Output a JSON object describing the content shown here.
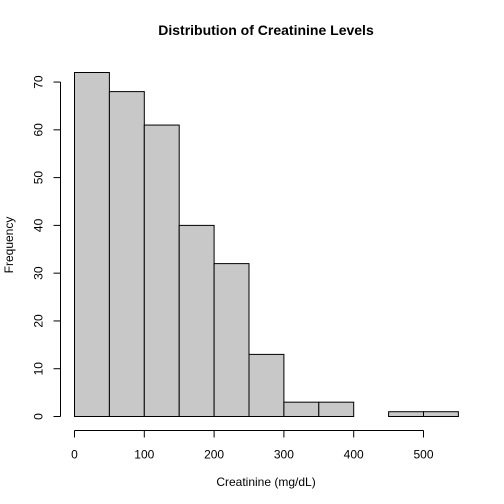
{
  "chart_data": {
    "type": "bar",
    "title": "Distribution of Creatinine Levels",
    "xlabel": "Creatinine (mg/dL)",
    "ylabel": "Frequency",
    "bins": [
      {
        "start": 0,
        "end": 50,
        "count": 72
      },
      {
        "start": 50,
        "end": 100,
        "count": 68
      },
      {
        "start": 100,
        "end": 150,
        "count": 61
      },
      {
        "start": 150,
        "end": 200,
        "count": 40
      },
      {
        "start": 200,
        "end": 250,
        "count": 32
      },
      {
        "start": 250,
        "end": 300,
        "count": 13
      },
      {
        "start": 300,
        "end": 350,
        "count": 3
      },
      {
        "start": 350,
        "end": 400,
        "count": 3
      },
      {
        "start": 400,
        "end": 450,
        "count": 0
      },
      {
        "start": 450,
        "end": 500,
        "count": 1
      },
      {
        "start": 500,
        "end": 550,
        "count": 1
      }
    ],
    "xticks": [
      "0",
      "100",
      "200",
      "300",
      "400",
      "500"
    ],
    "yticks": [
      "0",
      "10",
      "20",
      "30",
      "40",
      "50",
      "60",
      "70"
    ],
    "xlim": [
      0,
      550
    ],
    "ylim": [
      0,
      72
    ],
    "grid": false,
    "colors": {
      "bar_fill": "#c8c8c8",
      "bar_stroke": "#000000"
    }
  }
}
